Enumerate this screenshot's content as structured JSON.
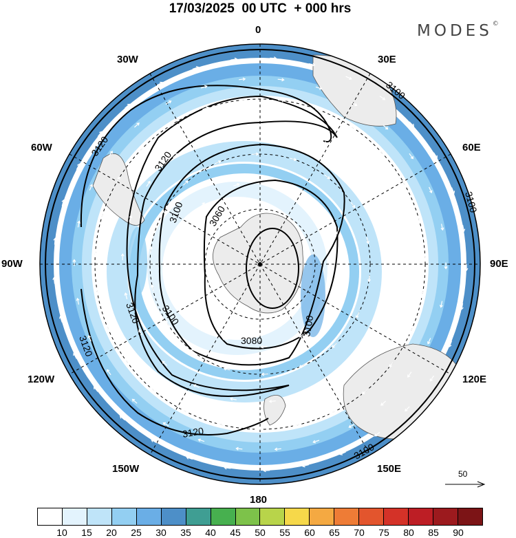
{
  "header": {
    "title": "17/03/2025  00 UTC  + 000 hrs",
    "brand": "MODES"
  },
  "map": {
    "projection": "south polar stereographic",
    "longitude_labels": [
      "0",
      "30E",
      "60E",
      "90E",
      "120E",
      "150E",
      "180",
      "150W",
      "120W",
      "90W",
      "60W",
      "30W"
    ],
    "contour_labels": [
      "3060",
      "3080",
      "3100",
      "3100",
      "3100",
      "3100",
      "3100",
      "3120",
      "3120",
      "3120",
      "3120",
      "3120"
    ],
    "colors": {
      "land": "#ececec",
      "coast": "#555555",
      "contour": "#000000",
      "wind_arrow": "#ffffff"
    }
  },
  "reference_vector": {
    "label": "50"
  },
  "colorbar": {
    "ticks": [
      "10",
      "15",
      "20",
      "25",
      "30",
      "35",
      "40",
      "45",
      "50",
      "55",
      "60",
      "65",
      "70",
      "75",
      "80",
      "85",
      "90"
    ],
    "colors": [
      "#ffffff",
      "#e3f3fd",
      "#bfe4f9",
      "#93cff2",
      "#6aaee6",
      "#4d8fc8",
      "#3f9e93",
      "#47b04f",
      "#7dc24a",
      "#b8d44a",
      "#f6d84a",
      "#f4a942",
      "#ee7c36",
      "#e3552d",
      "#d43228",
      "#bd1e25",
      "#9c1a1e",
      "#7c1416"
    ]
  }
}
